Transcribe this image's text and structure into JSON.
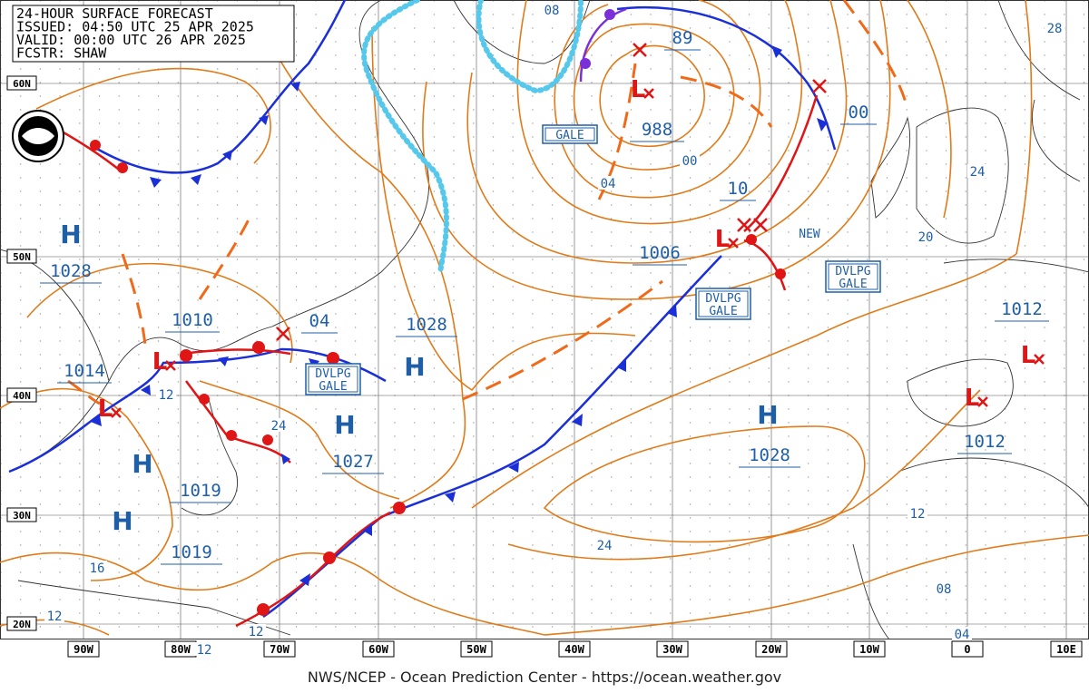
{
  "header": [
    "24-HOUR SURFACE FORECAST",
    "ISSUED: 04:50 UTC 25 APR 2025",
    "VALID:  00:00 UTC 26 APR 2025",
    "FCSTR:  SHAW"
  ],
  "latitude_labels": [
    "60N",
    "50N",
    "40N",
    "30N",
    "20N"
  ],
  "longitude_labels": [
    "90W",
    "80W",
    "70W",
    "60W",
    "50W",
    "40W",
    "30W",
    "20W",
    "10W",
    "0",
    "10E"
  ],
  "highs": [
    {
      "symbol": "H",
      "pressure": "1028"
    },
    {
      "symbol": "H",
      "pressure": "1019"
    },
    {
      "symbol": "H",
      "pressure": "1019"
    },
    {
      "symbol": "H",
      "pressure": "1027"
    },
    {
      "symbol": "H",
      "pressure": "1028"
    },
    {
      "symbol": "H",
      "pressure": "1028"
    }
  ],
  "lows": [
    {
      "symbol": "L",
      "pressure": "988"
    },
    {
      "symbol": "L",
      "pressure": "1006"
    },
    {
      "symbol": "L",
      "pressure": "1010"
    },
    {
      "symbol": "L",
      "pressure": "1014"
    },
    {
      "symbol": "L",
      "pressure": "1012"
    },
    {
      "symbol": "L",
      "pressure": "1012"
    }
  ],
  "pressure_notes": [
    "89",
    "00",
    "10",
    "04"
  ],
  "isobar_labels": [
    "08",
    "00",
    "04",
    "28",
    "24",
    "20",
    "12",
    "24",
    "12",
    "24",
    "16",
    "12",
    "08",
    "04",
    "12",
    "12"
  ],
  "warnings": [
    [
      "GALE"
    ],
    [
      "DVLPG",
      "GALE"
    ],
    [
      "DVLPG",
      "GALE"
    ],
    [
      "DVLPG",
      "GALE"
    ]
  ],
  "new_label": "NEW",
  "footer": "NWS/NCEP - Ocean Prediction Center - https://ocean.weather.gov"
}
